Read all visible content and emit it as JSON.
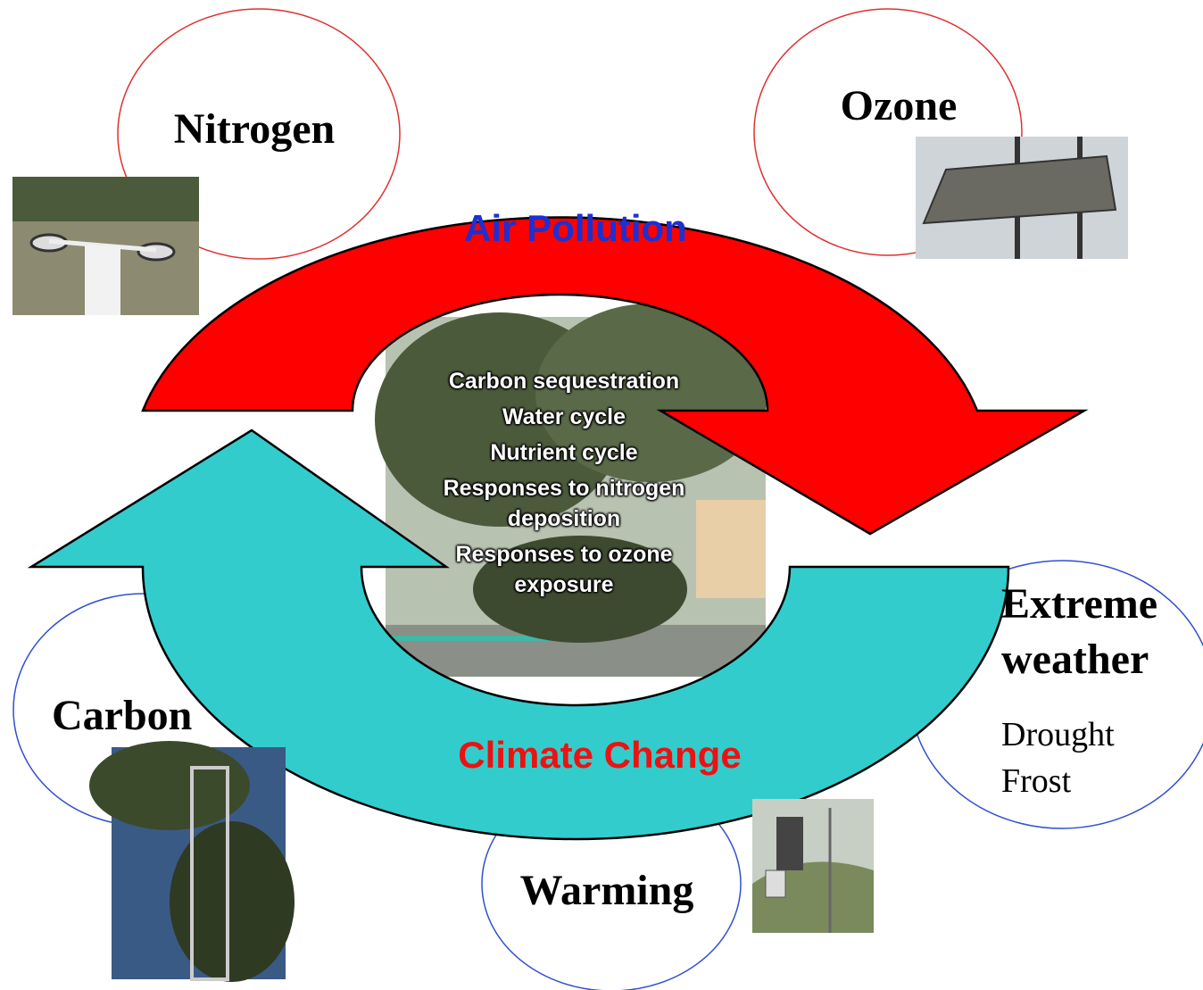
{
  "nodes": [
    {
      "label": "Nitrogen"
    },
    {
      "label": "Ozone"
    },
    {
      "label": "Carbon"
    },
    {
      "label": "Warming"
    },
    {
      "label_lines": [
        "Extreme",
        "weather"
      ],
      "details": [
        "Drought",
        "Frost"
      ]
    }
  ],
  "cycle": {
    "top": "Air Pollution",
    "bottom": "Climate Change"
  },
  "center": {
    "items": [
      "Carbon sequestration",
      "Water cycle",
      "Nutrient cycle",
      "Responses to nitrogen deposition",
      "Responses to ozone exposure"
    ]
  }
}
